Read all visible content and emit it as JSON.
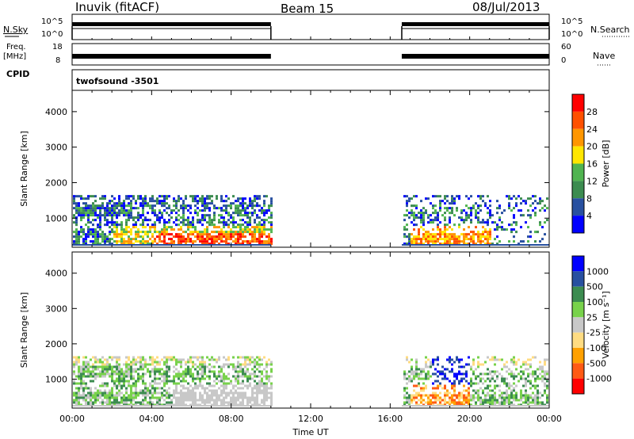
{
  "header": {
    "title": "Inuvik (fitACF)",
    "beam": "Beam 15",
    "date": "08/Jul/2013"
  },
  "noise_panel": {
    "left_label": "N.Sky",
    "right_label": "N.Search",
    "left_ticks": [
      "10^5",
      "10^0"
    ],
    "right_ticks": [
      "10^5",
      "10^0"
    ]
  },
  "freq_panel": {
    "left_label_1": "Freq.",
    "left_label_2": "[MHz]",
    "left_ticks": [
      "18",
      "8"
    ],
    "right_label": "Nave",
    "right_ticks": [
      "60",
      "0"
    ]
  },
  "cpid": {
    "label": "CPID",
    "value": "twofsound -3501"
  },
  "colors": {
    "power": [
      "#0000ff",
      "#2850a0",
      "#3c8c50",
      "#50b450",
      "#ffe600",
      "#ff9600",
      "#ff5000",
      "#ff0000"
    ],
    "velocity": [
      "#ff0000",
      "#ff5a14",
      "#ffa000",
      "#ffdc82",
      "#c8c8c8",
      "#78d24b",
      "#3c8c50",
      "#2850a0",
      "#0000ff"
    ]
  },
  "chart_data": [
    {
      "type": "heatmap",
      "name": "power",
      "ylabel": "Slant Range [km]",
      "ylim": [
        180,
        4600
      ],
      "yticks": [
        "4000",
        "3000",
        "2000",
        "1000"
      ],
      "xlim": [
        "00:00",
        "24:00"
      ],
      "colorbar_label": "Power [dB]",
      "colorbar_ticks": [
        "28",
        "24",
        "20",
        "16",
        "12",
        "8",
        "4"
      ],
      "data_gaps": [
        [
          "10:00",
          "16:35"
        ]
      ],
      "max_range_km": 1650
    },
    {
      "type": "heatmap",
      "name": "velocity",
      "ylabel": "Slant Range [km]",
      "ylim": [
        180,
        4600
      ],
      "yticks": [
        "4000",
        "3000",
        "2000",
        "1000"
      ],
      "xlim": [
        "00:00",
        "24:00"
      ],
      "xticks": [
        "00:00",
        "04:00",
        "08:00",
        "12:00",
        "16:00",
        "20:00",
        "00:00"
      ],
      "xlabel": "Time UT",
      "colorbar_label": "Velocity [m s⁻¹]",
      "colorbar_ticks": [
        "1000",
        "500",
        "100",
        "25",
        "-25",
        "-100",
        "-500",
        "-1000"
      ],
      "data_gaps": [
        [
          "10:00",
          "16:35"
        ]
      ],
      "max_range_km": 1650
    }
  ]
}
